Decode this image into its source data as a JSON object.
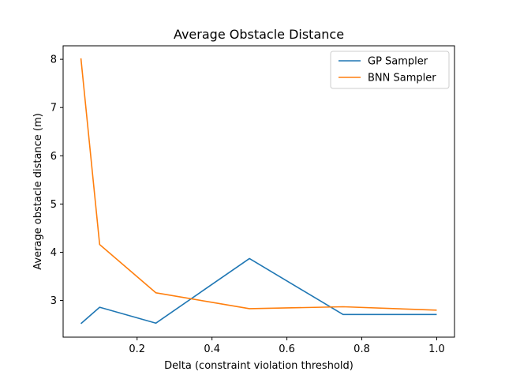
{
  "chart_data": {
    "type": "line",
    "title": "Average Obstacle Distance",
    "xlabel": "Delta (constraint violation threshold)",
    "ylabel": "Average obstacle distance (m)",
    "xlim": [
      0.0025,
      1.0475
    ],
    "ylim": [
      2.24,
      8.28
    ],
    "xticks": [
      0.2,
      0.4,
      0.6,
      0.8,
      1.0
    ],
    "xtick_labels": [
      "0.2",
      "0.4",
      "0.6",
      "0.8",
      "1.0"
    ],
    "yticks": [
      3,
      4,
      5,
      6,
      7,
      8
    ],
    "ytick_labels": [
      "3",
      "4",
      "5",
      "6",
      "7",
      "8"
    ],
    "grid": false,
    "legend_position": "top-right",
    "x": [
      0.05,
      0.1,
      0.25,
      0.5,
      0.75,
      1.0
    ],
    "series": [
      {
        "name": "GP Sampler",
        "color": "#1f77b4",
        "values": [
          2.52,
          2.86,
          2.53,
          3.87,
          2.71,
          2.71
        ]
      },
      {
        "name": "BNN Sampler",
        "color": "#ff7f0e",
        "values": [
          8.02,
          4.16,
          3.16,
          2.83,
          2.87,
          2.8
        ]
      }
    ]
  }
}
